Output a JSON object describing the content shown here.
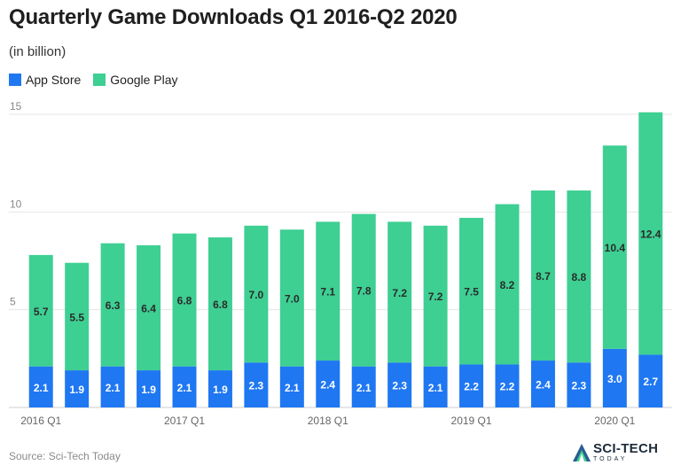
{
  "header": {
    "title": "Quarterly Game Downloads Q1 2016-Q2 2020",
    "subtitle": "(in billion)"
  },
  "footer": {
    "source": "Source: Sci-Tech Today",
    "logo_main": "SCI-TECH",
    "logo_sub": "TODAY"
  },
  "colors": {
    "app_store": "#1f77f2",
    "google_play": "#3ecf93",
    "grid": "#e6e6e6",
    "axis": "#cccccc",
    "label_on_blue": "#ffffff",
    "label_on_green": "#2b2b2b"
  },
  "chart_data": {
    "type": "bar",
    "stacked": true,
    "title": "Quarterly Game Downloads Q1 2016-Q2 2020",
    "subtitle": "(in billion)",
    "categories": [
      "2016 Q1",
      "2016 Q2",
      "2016 Q3",
      "2016 Q4",
      "2017 Q1",
      "2017 Q2",
      "2017 Q3",
      "2017 Q4",
      "2018 Q1",
      "2018 Q2",
      "2018 Q3",
      "2018 Q4",
      "2019 Q1",
      "2019 Q2",
      "2019 Q3",
      "2019 Q4",
      "2020 Q1",
      "2020 Q2"
    ],
    "x_tick_labels": [
      "2016 Q1",
      "2017 Q1",
      "2018 Q1",
      "2019 Q1",
      "2020 Q1"
    ],
    "series": [
      {
        "name": "App Store",
        "values": [
          2.1,
          1.9,
          2.1,
          1.9,
          2.1,
          1.9,
          2.3,
          2.1,
          2.4,
          2.1,
          2.3,
          2.1,
          2.2,
          2.2,
          2.4,
          2.3,
          3.0,
          2.7
        ]
      },
      {
        "name": "Google Play",
        "values": [
          5.7,
          5.5,
          6.3,
          6.4,
          6.8,
          6.8,
          7.0,
          7.0,
          7.1,
          7.8,
          7.2,
          7.2,
          7.5,
          8.2,
          8.7,
          8.8,
          10.4,
          12.4
        ]
      }
    ],
    "data_labels": {
      "App Store": [
        "2.1",
        "1.9",
        "2.1",
        "1.9",
        "2.1",
        "1.9",
        "2.3",
        "2.1",
        "2.4",
        "2.1",
        "2.3",
        "2.1",
        "2.2",
        "2.2",
        "2.4",
        "2.3",
        "3.0",
        "2.7"
      ],
      "Google Play": [
        "5.7",
        "5.5",
        "6.3",
        "6.4",
        "6.8",
        "6.8",
        "7.0",
        "7.0",
        "7.1",
        "7.8",
        "7.2",
        "7.2",
        "7.5",
        "8.2",
        "8.7",
        "8.8",
        "10.4",
        "12.4"
      ]
    },
    "y_ticks": [
      "5",
      "10",
      "15"
    ],
    "ylim": [
      0,
      15
    ],
    "grid": true,
    "legend_position": "top-left",
    "xlabel": "",
    "ylabel": ""
  }
}
